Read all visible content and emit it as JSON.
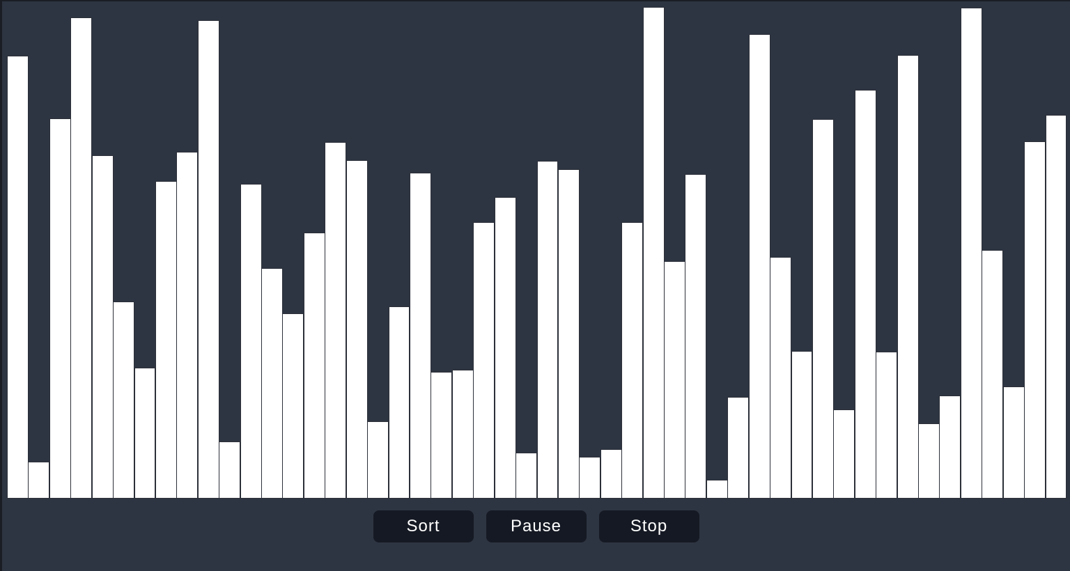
{
  "controls": {
    "sort_label": "Sort",
    "pause_label": "Pause",
    "stop_label": "Stop"
  },
  "colors": {
    "background": "#2e3542",
    "bar": "#ffffff",
    "button_bg": "#151923"
  },
  "array": {
    "values": [
      636,
      53,
      546,
      691,
      493,
      283,
      188,
      456,
      498,
      687,
      82,
      452,
      331,
      266,
      382,
      512,
      486,
      111,
      276,
      468,
      182,
      185,
      397,
      433,
      66,
      485,
      473,
      60,
      71,
      397,
      706,
      341,
      466,
      27,
      146,
      667,
      347,
      212,
      545,
      128,
      587,
      211,
      637,
      108,
      148,
      705,
      357,
      161,
      513,
      551
    ],
    "max": 714
  }
}
